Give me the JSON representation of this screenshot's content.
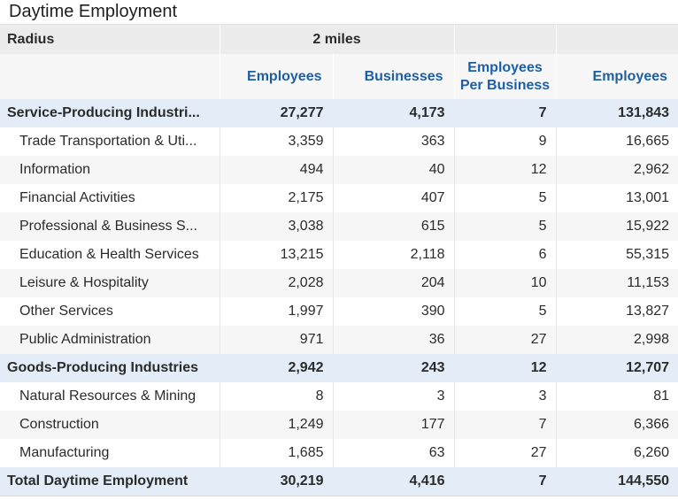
{
  "title": "Daytime Employment",
  "radius_label": "Radius",
  "radius_value": "2 miles",
  "columns": {
    "employees": "Employees",
    "businesses": "Businesses",
    "ppb_line1": "Employees",
    "ppb_line2": "Per Business",
    "employees2": "Employees"
  },
  "rows": [
    {
      "type": "group",
      "name": "Service-Producing Industri...",
      "employees": "27,277",
      "businesses": "4,173",
      "per_business": "7",
      "employees2": "131,843"
    },
    {
      "type": "item",
      "name": "Trade Transportation & Uti...",
      "employees": "3,359",
      "businesses": "363",
      "per_business": "9",
      "employees2": "16,665"
    },
    {
      "type": "item",
      "name": "Information",
      "employees": "494",
      "businesses": "40",
      "per_business": "12",
      "employees2": "2,962"
    },
    {
      "type": "item",
      "name": "Financial Activities",
      "employees": "2,175",
      "businesses": "407",
      "per_business": "5",
      "employees2": "13,001"
    },
    {
      "type": "item",
      "name": "Professional & Business S...",
      "employees": "3,038",
      "businesses": "615",
      "per_business": "5",
      "employees2": "15,922"
    },
    {
      "type": "item",
      "name": "Education & Health Services",
      "employees": "13,215",
      "businesses": "2,118",
      "per_business": "6",
      "employees2": "55,315"
    },
    {
      "type": "item",
      "name": "Leisure & Hospitality",
      "employees": "2,028",
      "businesses": "204",
      "per_business": "10",
      "employees2": "11,153"
    },
    {
      "type": "item",
      "name": "Other Services",
      "employees": "1,997",
      "businesses": "390",
      "per_business": "5",
      "employees2": "13,827"
    },
    {
      "type": "item",
      "name": "Public Administration",
      "employees": "971",
      "businesses": "36",
      "per_business": "27",
      "employees2": "2,998"
    },
    {
      "type": "group",
      "name": "Goods-Producing Industries",
      "employees": "2,942",
      "businesses": "243",
      "per_business": "12",
      "employees2": "12,707"
    },
    {
      "type": "item",
      "name": "Natural Resources & Mining",
      "employees": "8",
      "businesses": "3",
      "per_business": "3",
      "employees2": "81"
    },
    {
      "type": "item",
      "name": "Construction",
      "employees": "1,249",
      "businesses": "177",
      "per_business": "7",
      "employees2": "6,366"
    },
    {
      "type": "item",
      "name": "Manufacturing",
      "employees": "1,685",
      "businesses": "63",
      "per_business": "27",
      "employees2": "6,260"
    },
    {
      "type": "group",
      "name": "Total Daytime Employment",
      "employees": "30,219",
      "businesses": "4,416",
      "per_business": "7",
      "employees2": "144,550"
    }
  ],
  "colors": {
    "header_text": "#1d5fa6",
    "group_row_bg": "#e4ecf8",
    "radius_row_bg": "#ececec",
    "alt_row_bg": "#f6f6f6"
  }
}
